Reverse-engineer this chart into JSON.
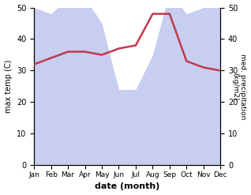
{
  "months": [
    "Jan",
    "Feb",
    "Mar",
    "Apr",
    "May",
    "Jun",
    "Jul",
    "Aug",
    "Sep",
    "Oct",
    "Nov",
    "Dec"
  ],
  "temperature": [
    32,
    34,
    36,
    36,
    35,
    37,
    38,
    48,
    48,
    33,
    31,
    30
  ],
  "precipitation": [
    50,
    48,
    53,
    53,
    45,
    24,
    24,
    35,
    55,
    48,
    50,
    52
  ],
  "temp_color": "#c0394a",
  "precip_color": "#aab4e8",
  "precip_alpha": 0.65,
  "ylabel_left": "max temp (C)",
  "ylabel_right": "med. precipitation\n(kg/m2)",
  "xlabel": "date (month)",
  "ylim_left": [
    0,
    50
  ],
  "ylim_right": [
    0,
    50
  ],
  "yticks_left": [
    0,
    10,
    20,
    30,
    40,
    50
  ],
  "yticks_right": [
    0,
    10,
    20,
    30,
    40,
    50
  ],
  "background_color": "#ffffff"
}
